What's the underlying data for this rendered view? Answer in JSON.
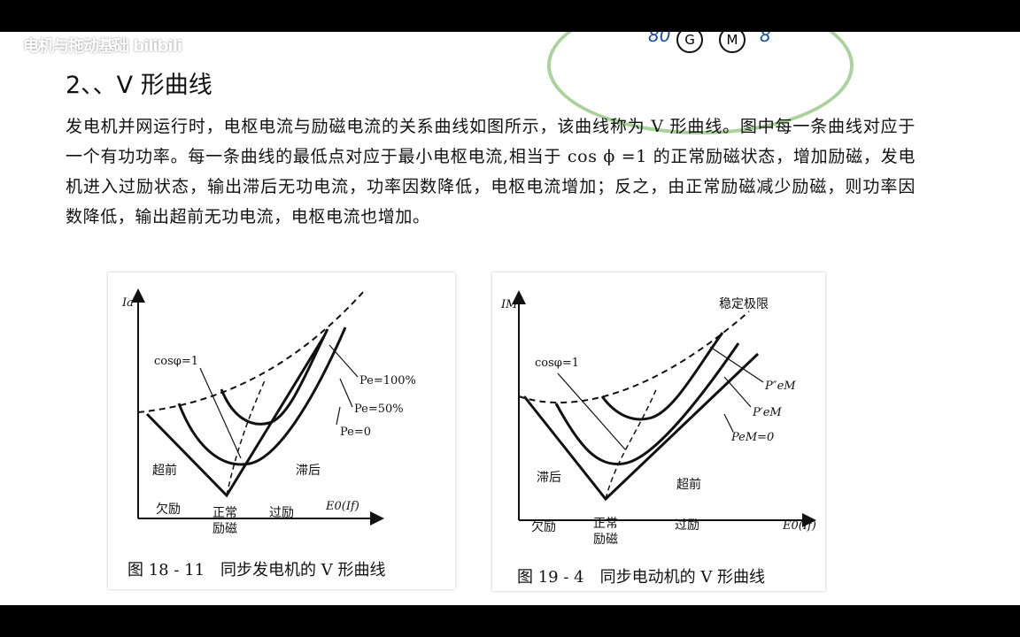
{
  "watermark": "电机与拖动基础 bilibili",
  "heading": "2、、V 形曲线",
  "paragraph": "发电机并网运行时，电枢电流与励磁电流的关系曲线如图所示，该曲线称为 V 形曲线。图中每一条曲线对应于一个有功功率。每一条曲线的最低点对应于最小电枢电流,相当于 cos ϕ =1 的正常励磁状态，增加励磁，发电机进入过励状态，输出滞后无功电流，功率因数降低，电枢电流增加；反之，由正常励磁减少励磁，则功率因数降低，输出超前无功电流，电枢电流也增加。",
  "sketch": {
    "left_text": "80",
    "circle1": "G",
    "circle2": "M",
    "right_text": "8"
  },
  "figure1": {
    "caption": "图 18 - 11　同步发电机的 V 形曲线",
    "y_axis": "Ia",
    "x_axis": "E0(If)",
    "cosphi": "cosφ=1",
    "p100": "Pe=100%",
    "p50": "Pe=50%",
    "p0": "Pe=0",
    "left_region": "超前",
    "right_region": "滞后",
    "under": "欠励",
    "normal_1": "正常",
    "normal_2": "励磁",
    "over": "过励"
  },
  "figure2": {
    "caption": "图 19 - 4　同步电动机的 V 形曲线",
    "y_axis": "IM",
    "x_axis": "E0(If)",
    "stability": "稳定极限",
    "cosphi": "cosφ=1",
    "p2": "P″eM",
    "p1": "P′eM",
    "p0": "PeM=0",
    "left_region": "滞后",
    "right_region": "超前",
    "under": "欠励",
    "normal_1": "正常",
    "normal_2": "励磁",
    "over": "过励"
  }
}
